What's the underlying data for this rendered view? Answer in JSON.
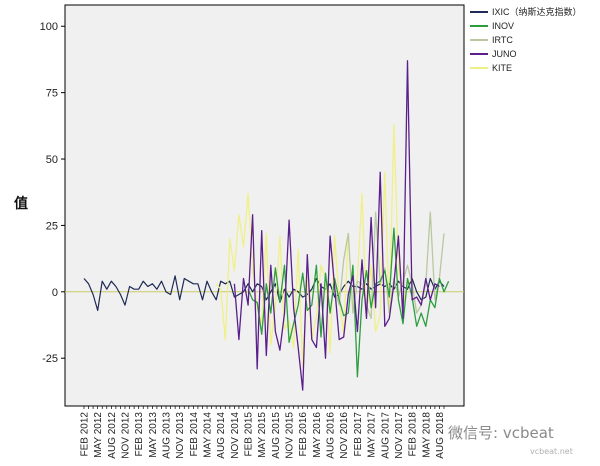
{
  "chart_data": {
    "type": "line",
    "ylabel": "值",
    "xlabel": "",
    "ylim": [
      -43,
      108
    ],
    "yticks": [
      -25,
      0,
      25,
      50,
      75,
      100
    ],
    "x_start": "2012-02",
    "x_tick_labels": [
      "FEB 2012",
      "MAY 2012",
      "AUG 2012",
      "NOV 2012",
      "FEB 2013",
      "MAY 2013",
      "AUG 2013",
      "NOV 2013",
      "FEB 2014",
      "MAY 2014",
      "AUG 2014",
      "NOV 2014",
      "FEB 2015",
      "MAY 2015",
      "AUG 2015",
      "NOV 2015",
      "FEB 2016",
      "MAY 2016",
      "AUG 2016",
      "NOV 2016",
      "FEB 2017",
      "MAY 2017",
      "AUG 2017",
      "NOV 2017",
      "FEB 2018",
      "MAY 2018",
      "AUG 2018"
    ],
    "x_month_labels": [
      "2012-02",
      "2012-03",
      "2012-04",
      "2012-05",
      "2012-06",
      "2012-07",
      "2012-08",
      "2012-09",
      "2012-10",
      "2012-11",
      "2012-12",
      "2013-01",
      "2013-02",
      "2013-03",
      "2013-04",
      "2013-05",
      "2013-06",
      "2013-07",
      "2013-08",
      "2013-09",
      "2013-10",
      "2013-11",
      "2013-12",
      "2014-01",
      "2014-02",
      "2014-03",
      "2014-04",
      "2014-05",
      "2014-06",
      "2014-07",
      "2014-08",
      "2014-09",
      "2014-10",
      "2014-11",
      "2014-12",
      "2015-01",
      "2015-02",
      "2015-03",
      "2015-04",
      "2015-05",
      "2015-06",
      "2015-07",
      "2015-08",
      "2015-09",
      "2015-10",
      "2015-11",
      "2015-12",
      "2016-01",
      "2016-02",
      "2016-03",
      "2016-04",
      "2016-05",
      "2016-06",
      "2016-07",
      "2016-08",
      "2016-09",
      "2016-10",
      "2016-11",
      "2016-12",
      "2017-01",
      "2017-02",
      "2017-03",
      "2017-04",
      "2017-05",
      "2017-06",
      "2017-07",
      "2017-08",
      "2017-09",
      "2017-10",
      "2017-11",
      "2017-12",
      "2018-01",
      "2018-02",
      "2018-03",
      "2018-04",
      "2018-05",
      "2018-06",
      "2018-07",
      "2018-08",
      "2018-09"
    ],
    "series": [
      {
        "name": "IXIC（纳斯达克指数）",
        "color": "#1f2a55",
        "start": "2012-02",
        "values": [
          5,
          3,
          -1,
          -7,
          4,
          1,
          4,
          2,
          -1,
          -5,
          2,
          1,
          1,
          4,
          2,
          3,
          1,
          4,
          0,
          -1,
          6,
          -3,
          5,
          4,
          3,
          3,
          -3,
          4,
          0,
          -3,
          4,
          3,
          4,
          -2,
          -1,
          0,
          3,
          0,
          3,
          2,
          -3,
          0,
          3,
          -4,
          1,
          -2,
          1,
          0,
          -2,
          -1,
          1,
          5,
          2,
          1,
          3,
          -2,
          -1,
          2,
          4,
          2,
          2,
          1,
          3,
          1,
          2,
          3,
          2,
          3,
          1,
          4,
          2,
          1,
          5,
          0,
          -3,
          -2,
          5,
          1,
          4,
          2
        ]
      },
      {
        "name": "INOV",
        "color": "#2c9e3e",
        "start": "2015-02",
        "values": [
          1,
          -3,
          -4,
          -16,
          3,
          -8,
          9,
          -4,
          10,
          -19,
          -12,
          -5,
          7,
          -7,
          -5,
          10,
          -17,
          7,
          -8,
          5,
          -3,
          -9,
          -8,
          10,
          -32,
          -3,
          8,
          -6,
          3,
          4,
          8,
          -2,
          24,
          -3,
          -12,
          5,
          -2,
          -13,
          -8,
          -13,
          -3,
          -6,
          5,
          0,
          4
        ]
      },
      {
        "name": "IRTC",
        "color": "#b9c8a0",
        "start": "2016-09",
        "values": [
          1,
          -5,
          12,
          22,
          -8,
          4,
          3,
          -5,
          -10,
          30,
          3,
          9,
          -8,
          5,
          -2,
          4,
          10,
          3,
          -8,
          -5,
          3,
          30,
          -3,
          5,
          22
        ]
      },
      {
        "name": "JUNO",
        "color": "#5a1f8a",
        "start": "2014-11",
        "values": [
          3,
          -18,
          5,
          -5,
          29,
          -29,
          23,
          -24,
          10,
          -15,
          -22,
          -8,
          27,
          -6,
          -21,
          -37,
          14,
          -18,
          -21,
          3,
          -25,
          21,
          2,
          -18,
          -17,
          -1,
          6,
          -15,
          12,
          -10,
          28,
          -6,
          45,
          -13,
          -10,
          3,
          21,
          -10,
          87,
          -3,
          -2,
          -5,
          5,
          -3,
          3,
          2
        ]
      },
      {
        "name": "KITE",
        "color": "#f0f088",
        "start": "2014-07",
        "values": [
          3,
          1,
          -18,
          20,
          8,
          29,
          17,
          37,
          9,
          -6,
          -12,
          22,
          -20,
          -5,
          21,
          -14,
          -11,
          -21,
          16,
          -28,
          6,
          -18,
          -9,
          10,
          5,
          -23,
          21,
          -3,
          -16,
          22,
          -7,
          5,
          37,
          -9,
          10,
          -15,
          -9,
          45,
          -10,
          63,
          10,
          -5,
          3,
          5
        ]
      }
    ]
  },
  "watermark": {
    "text": "微信号: vcbeat",
    "sub_text": "vcbeat.net"
  }
}
